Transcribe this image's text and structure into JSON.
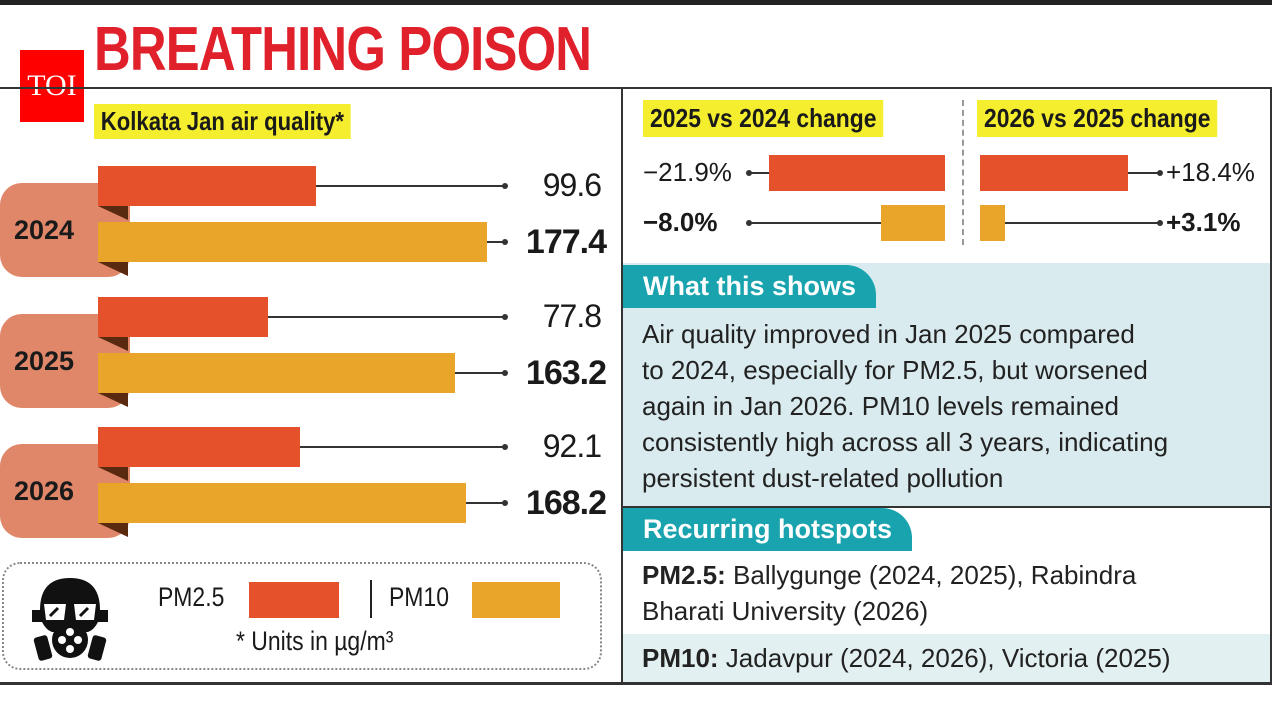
{
  "title": "BREATHING POISON",
  "logo": "TOI",
  "subtitle": "Kolkata Jan air quality*",
  "colors": {
    "pm25": "#e5512b",
    "pm10": "#e9a42a",
    "year_bg": "#e0876a",
    "highlight": "#f5ee2e",
    "teal": "#18a3ae"
  },
  "chart_data": [
    {
      "type": "bar",
      "orientation": "horizontal",
      "title": "Kolkata Jan air quality*",
      "categories": [
        "2024",
        "2025",
        "2026"
      ],
      "series": [
        {
          "name": "PM2.5",
          "values": [
            99.6,
            77.8,
            92.1
          ],
          "labels": [
            "99.6",
            "77.8",
            "92.1"
          ]
        },
        {
          "name": "PM10",
          "values": [
            177.4,
            163.2,
            168.2
          ],
          "labels": [
            "177.4",
            "163.2",
            "168.2"
          ]
        }
      ],
      "unit_note": "* Units in µg/m³",
      "legend": "bottom"
    },
    {
      "type": "bar",
      "orientation": "horizontal",
      "title": "2025 vs 2024 change",
      "categories": [
        "PM2.5",
        "PM10"
      ],
      "values": [
        -21.9,
        -8.0
      ],
      "labels": [
        "−21.9%",
        "−8.0%"
      ]
    },
    {
      "type": "bar",
      "orientation": "horizontal",
      "title": "2026 vs 2025 change",
      "categories": [
        "PM2.5",
        "PM10"
      ],
      "values": [
        18.4,
        3.1
      ],
      "labels": [
        "+18.4%",
        "+3.1%"
      ]
    }
  ],
  "legend": {
    "pm25": "PM2.5",
    "pm10": "PM10",
    "note": "* Units in µg/m³",
    "icon": "gas-mask-icon"
  },
  "shows": {
    "heading": "What this shows",
    "lines": [
      "Air quality improved in Jan 2025 compared",
      "to 2024, especially for PM2.5, but worsened",
      "again in Jan 2026. PM10 levels remained",
      "consistently high across all 3 years, indicating",
      "persistent dust-related pollution"
    ]
  },
  "hotspots": {
    "heading": "Recurring hotspots",
    "pm25_label": "PM2.5:",
    "pm25_line1": " Ballygunge (2024, 2025), Rabindra",
    "pm25_line2": "Bharati University (2026)",
    "pm10_label": "PM10:",
    "pm10_text": " Jadavpur (2024, 2026), Victoria (2025)"
  }
}
